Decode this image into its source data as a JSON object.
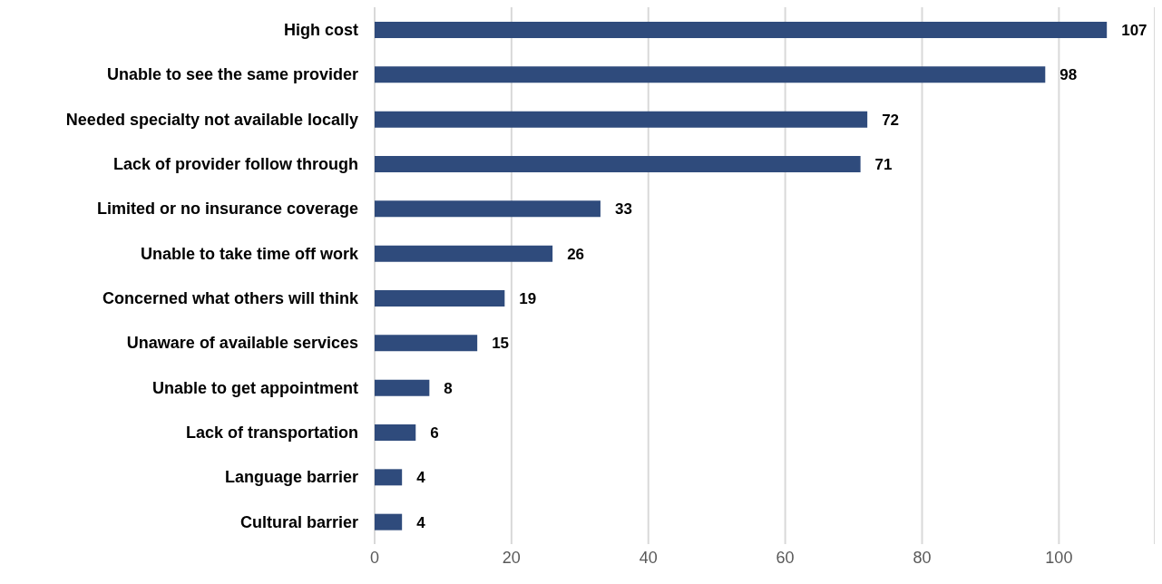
{
  "chart_data": {
    "type": "bar",
    "orientation": "horizontal",
    "categories": [
      "High cost",
      "Unable to see the same provider",
      "Needed specialty not available locally",
      "Lack of provider follow through",
      "Limited or no insurance coverage",
      "Unable to take time off work",
      "Concerned what others will think",
      "Unaware of available services",
      "Unable to get appointment",
      "Lack of transportation",
      "Language barrier",
      "Cultural barrier"
    ],
    "values": [
      107,
      98,
      72,
      71,
      33,
      26,
      19,
      15,
      8,
      6,
      4,
      4
    ],
    "color": "#2f4b7c",
    "xlim": [
      0,
      114
    ],
    "xticks": [
      0,
      20,
      40,
      60,
      80,
      100
    ],
    "grid": "x",
    "data_labels": true
  }
}
